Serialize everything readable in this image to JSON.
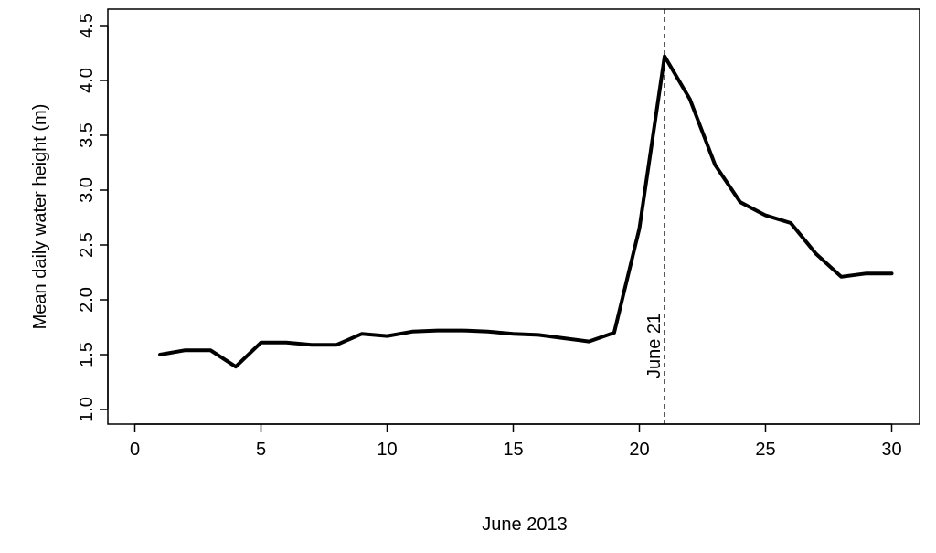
{
  "chart_data": {
    "type": "line",
    "title": "",
    "xlabel": "June 2013",
    "ylabel": "Mean daily water height (m)",
    "xlim": [
      0,
      30
    ],
    "ylim": [
      1.0,
      4.5
    ],
    "x_ticks": [
      0,
      5,
      10,
      15,
      20,
      25,
      30
    ],
    "x_tick_labels": [
      "0",
      "5",
      "10",
      "15",
      "20",
      "25",
      "30"
    ],
    "y_ticks": [
      1.0,
      1.5,
      2.0,
      2.5,
      3.0,
      3.5,
      4.0,
      4.5
    ],
    "y_tick_labels": [
      "1.0",
      "1.5",
      "2.0",
      "2.5",
      "3.0",
      "3.5",
      "4.0",
      "4.5"
    ],
    "grid": false,
    "legend": "none",
    "line_color": "#000000",
    "series": [
      {
        "x": [
          1,
          2,
          3,
          4,
          5,
          6,
          7,
          8,
          9,
          10,
          11,
          12,
          13,
          14,
          15,
          16,
          17,
          18,
          19,
          20,
          21,
          22,
          23,
          24,
          25,
          26,
          27,
          28,
          29,
          30
        ],
        "values": [
          1.5,
          1.54,
          1.54,
          1.39,
          1.61,
          1.61,
          1.59,
          1.59,
          1.69,
          1.67,
          1.71,
          1.72,
          1.72,
          1.71,
          1.69,
          1.68,
          1.65,
          1.62,
          1.7,
          2.65,
          4.22,
          3.83,
          3.23,
          2.89,
          2.77,
          2.7,
          2.42,
          2.21,
          2.24,
          2.24
        ]
      }
    ],
    "annotations": [
      {
        "text": "June 21",
        "x": 21,
        "style": "dashed-vertical-line"
      }
    ]
  }
}
